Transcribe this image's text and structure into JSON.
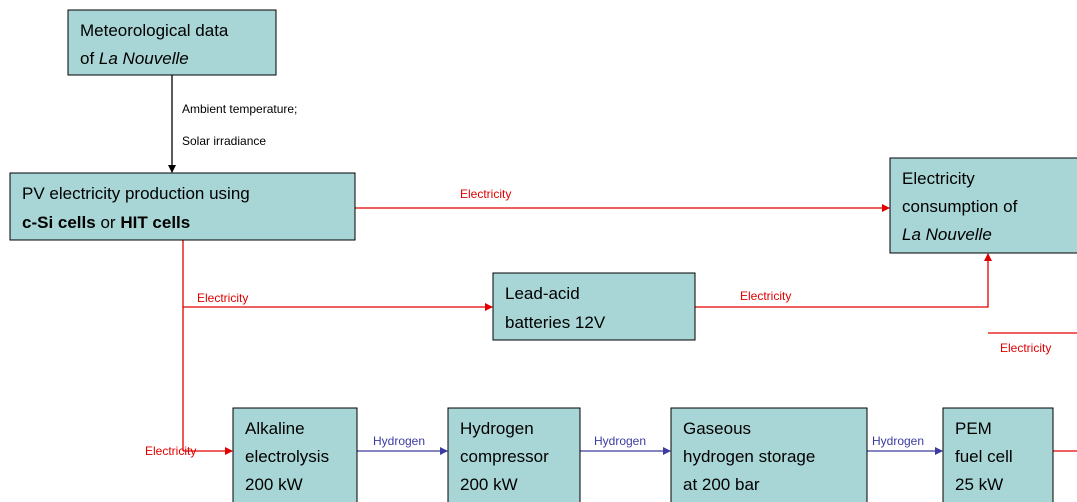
{
  "nodes": [
    {
      "lines": [
        [
          "Meteorological data"
        ],
        [
          "of",
          "La Nouvelle"
        ]
      ]
    },
    {
      "lines": [
        [
          "PV electricity production using"
        ],
        [
          "c-Si cells",
          "or",
          "HIT cells"
        ]
      ]
    },
    {
      "lines": [
        [
          "Electricity"
        ],
        [
          "consumption of"
        ],
        [
          "La Nouvelle"
        ]
      ]
    },
    {
      "lines": [
        [
          "Lead-acid"
        ],
        [
          "batteries 12V"
        ]
      ]
    },
    {
      "lines": [
        [
          "Alkaline"
        ],
        [
          "electrolysis"
        ],
        [
          "200 kW"
        ]
      ]
    },
    {
      "lines": [
        [
          "Hydrogen"
        ],
        [
          "compressor"
        ],
        [
          "200 kW"
        ]
      ]
    },
    {
      "lines": [
        [
          "Gaseous"
        ],
        [
          "hydrogen storage"
        ],
        [
          "at 200 bar"
        ]
      ]
    },
    {
      "lines": [
        [
          "PEM"
        ],
        [
          "fuel cell"
        ],
        [
          "25 kW"
        ]
      ]
    }
  ],
  "edges": [
    {
      "labels": [
        "Ambient temperature;",
        "Solar irradiance"
      ]
    },
    {
      "label": "Electricity"
    },
    {
      "label": "Electricity"
    },
    {
      "label": "Electricity"
    },
    {
      "label": "Electricity"
    },
    {
      "label": "Electricity"
    },
    {
      "label": "Hydrogen"
    },
    {
      "label": "Hydrogen"
    },
    {
      "label": "Hydrogen"
    }
  ]
}
